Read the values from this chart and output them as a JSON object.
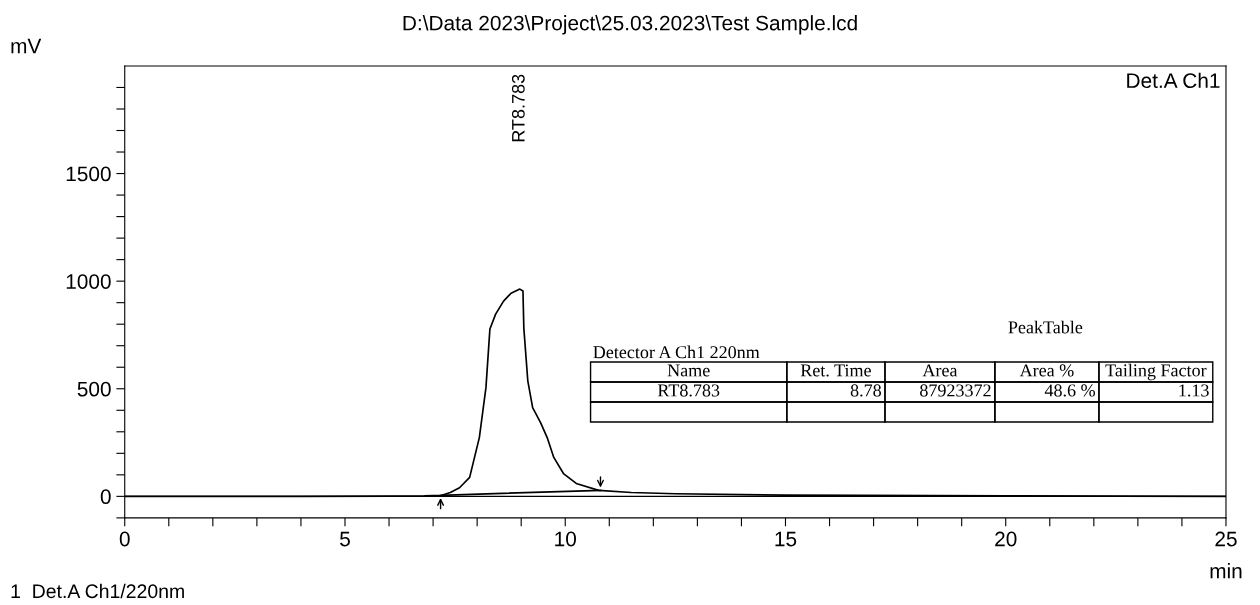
{
  "chart_data": {
    "type": "line",
    "title": "D:\\Data 2023\\Project\\25.03.2023\\Test Sample.lcd",
    "xlabel": "min",
    "ylabel": "mV",
    "series": [
      {
        "color": "#000000",
        "x": [
          0,
          2,
          4,
          6,
          6.8,
          7.2,
          7.39,
          7.6,
          7.83,
          8.05,
          8.2,
          8.29,
          8.42,
          8.6,
          8.77,
          8.97,
          9.04,
          9.06,
          9.15,
          9.26,
          9.44,
          9.59,
          9.74,
          9.96,
          10.25,
          10.76,
          11.5,
          12.5,
          15,
          20,
          25
        ],
        "values": [
          0,
          0,
          0,
          1,
          2,
          5,
          18,
          40,
          88,
          273,
          505,
          778,
          847,
          907,
          944,
          963,
          954,
          782,
          537,
          412,
          343,
          273,
          181,
          106,
          60,
          28,
          18,
          12,
          6,
          2,
          0
        ]
      },
      {
        "color": "#000000",
        "x": [
          7.17,
          10.8
        ],
        "values": [
          5,
          28
        ]
      }
    ],
    "xlim": [
      0,
      25
    ],
    "ylim": [
      -100,
      2000
    ],
    "xticks": [
      0,
      {
        "value": 1,
        "label": null
      },
      {
        "value": 2,
        "label": null
      },
      {
        "value": 3,
        "label": null
      },
      {
        "value": 4,
        "label": null
      },
      5,
      {
        "value": 6,
        "label": null
      },
      {
        "value": 7,
        "label": null
      },
      {
        "value": 8,
        "label": null
      },
      {
        "value": 9,
        "label": null
      },
      10,
      {
        "value": 11,
        "label": null
      },
      {
        "value": 12,
        "label": null
      },
      {
        "value": 13,
        "label": null
      },
      {
        "value": 14,
        "label": null
      },
      15,
      {
        "value": 16,
        "label": null
      },
      {
        "value": 17,
        "label": null
      },
      {
        "value": 18,
        "label": null
      },
      {
        "value": 19,
        "label": null
      },
      20,
      {
        "value": 21,
        "label": null
      },
      {
        "value": 22,
        "label": null
      },
      {
        "value": 23,
        "label": null
      },
      {
        "value": 24,
        "label": null
      },
      25
    ],
    "yticks": [
      {
        "value": -100,
        "label": null
      },
      0,
      {
        "value": 100,
        "label": null
      },
      {
        "value": 200,
        "label": null
      },
      {
        "value": 300,
        "label": null
      },
      {
        "value": 400,
        "label": null
      },
      500,
      {
        "value": 600,
        "label": null
      },
      {
        "value": 700,
        "label": null
      },
      {
        "value": 800,
        "label": null
      },
      {
        "value": 900,
        "label": null
      },
      1000,
      {
        "value": 1100,
        "label": null
      },
      {
        "value": 1200,
        "label": null
      },
      {
        "value": 1300,
        "label": null
      },
      {
        "value": 1400,
        "label": null
      },
      1500,
      {
        "value": 1600,
        "label": null
      },
      {
        "value": 1700,
        "label": null
      },
      {
        "value": 1800,
        "label": null
      },
      {
        "value": 1900,
        "label": null
      }
    ],
    "ref_lines": [
      {
        "axis": "y",
        "value": 0,
        "color": "#000000"
      }
    ],
    "annotations": [
      "RT8.783",
      "Det.A Ch1",
      "1  Det.A Ch1/220nm",
      "PeakTable",
      "Detector A Ch1 220nm",
      "Name",
      "Ret. Time",
      "Area",
      "Area %",
      "Tailing Factor",
      "RT8.783",
      "8.78",
      "87923372",
      "48.6 %",
      "1.13"
    ],
    "grid": false,
    "legend": false,
    "marker": "none",
    "line_style": "solid"
  }
}
